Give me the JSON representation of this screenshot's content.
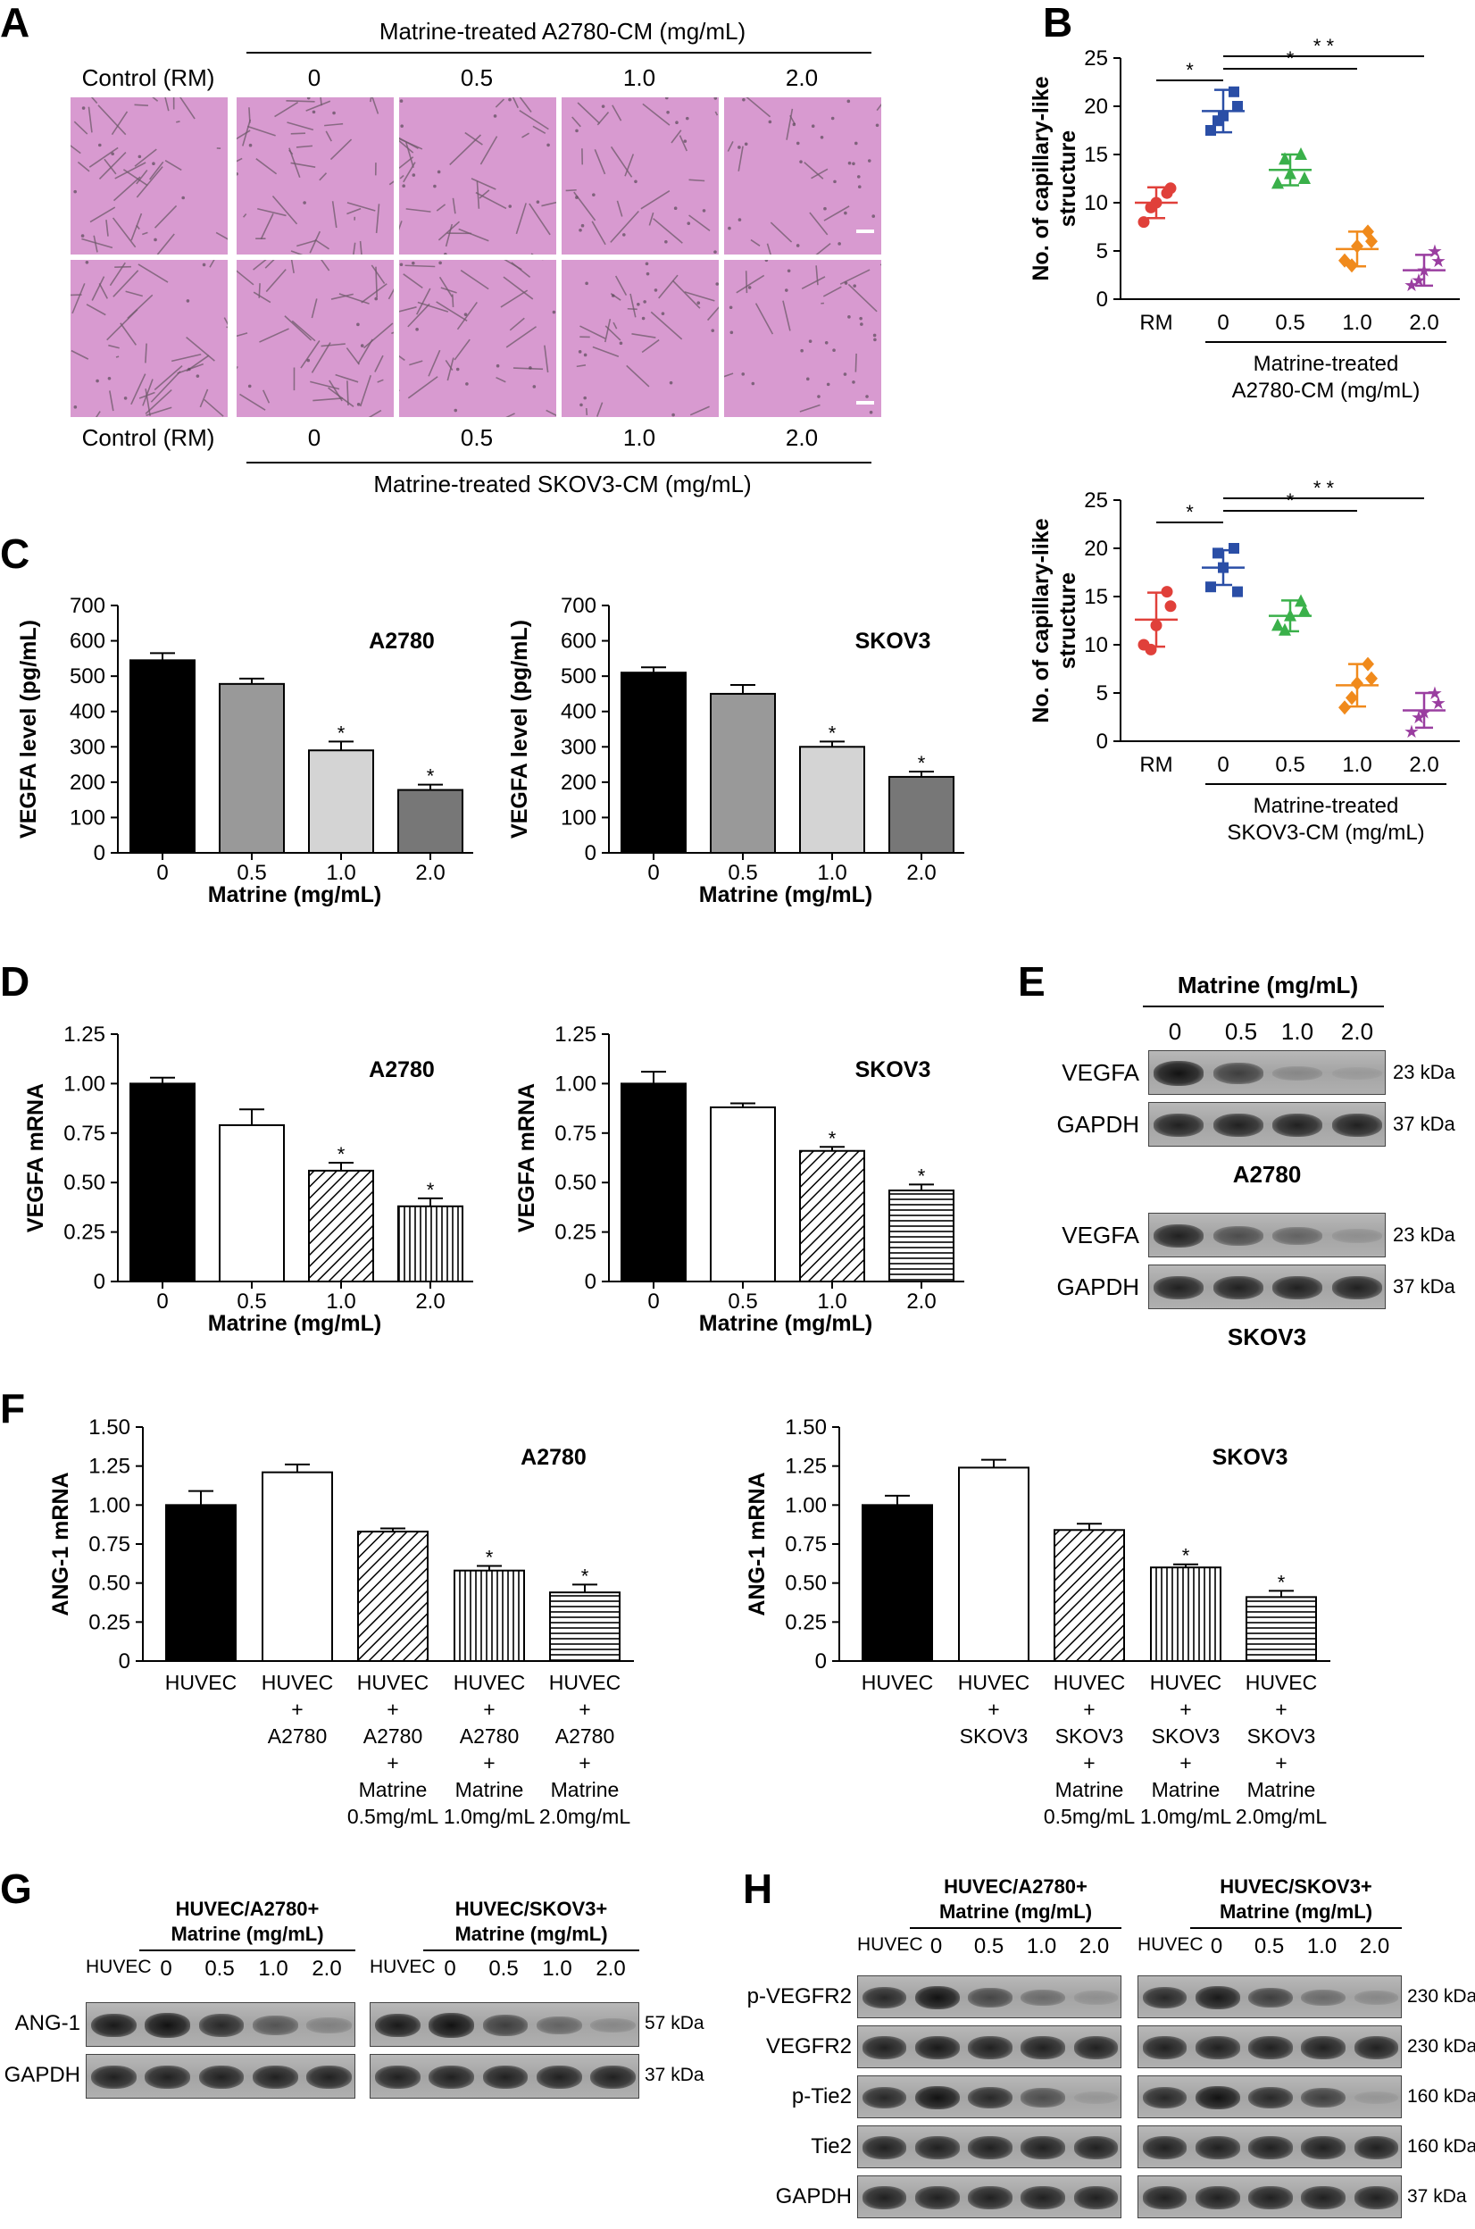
{
  "panels": {
    "A": {
      "label": "A",
      "top_title": "Matrine-treated A2780-CM (mg/mL)",
      "bottom_title": "Matrine-treated SKOV3-CM (mg/mL)",
      "columns": [
        "Control (RM)",
        "0",
        "0.5",
        "1.0",
        "2.0"
      ],
      "image_densities": [
        [
          0.9,
          1.0,
          0.8,
          0.55,
          0.35
        ],
        [
          0.9,
          1.0,
          0.8,
          0.55,
          0.35
        ]
      ]
    },
    "B": {
      "label": "B",
      "charts": [
        {
          "ylabel": "No. of capillary-like structure",
          "group_title": [
            "Matrine-treated",
            "A2780-CM (mg/mL)"
          ],
          "sig": [
            {
              "from": 0,
              "to": 1,
              "label": "*"
            },
            {
              "from": 1,
              "to": 3,
              "label": "*"
            },
            {
              "from": 1,
              "to": 4,
              "label": "* *"
            }
          ],
          "chart_data": {
            "type": "scatter",
            "categories": [
              "RM",
              "0",
              "0.5",
              "1.0",
              "2.0"
            ],
            "ylim": [
              0,
              25
            ],
            "yticks": [
              0,
              5,
              10,
              15,
              20,
              25
            ],
            "colors": [
              "#e0403a",
              "#2a4ea6",
              "#3ab04a",
              "#f08a1c",
              "#9a3ea0"
            ],
            "markers": [
              "circle",
              "square",
              "triangle",
              "diamond",
              "star"
            ],
            "means": [
              10,
              19.5,
              13.4,
              5.2,
              3.0
            ],
            "sd": [
              1.6,
              2.2,
              1.6,
              1.8,
              1.6
            ],
            "points": [
              [
                8,
                10,
                11,
                9.5,
                11.5
              ],
              [
                17.5,
                19,
                21.5,
                18.5,
                20
              ],
              [
                12,
                13,
                15,
                14.5,
                12.5
              ],
              [
                4,
                5.5,
                7,
                3.5,
                6
              ],
              [
                1.5,
                3,
                5,
                2,
                4
              ]
            ]
          }
        },
        {
          "ylabel": "No. of capillary-like structure",
          "group_title": [
            "Matrine-treated",
            "SKOV3-CM (mg/mL)"
          ],
          "sig": [
            {
              "from": 0,
              "to": 1,
              "label": "*"
            },
            {
              "from": 1,
              "to": 3,
              "label": "*"
            },
            {
              "from": 1,
              "to": 4,
              "label": "* *"
            }
          ],
          "chart_data": {
            "type": "scatter",
            "categories": [
              "RM",
              "0",
              "0.5",
              "1.0",
              "2.0"
            ],
            "ylim": [
              0,
              25
            ],
            "yticks": [
              0,
              5,
              10,
              15,
              20,
              25
            ],
            "colors": [
              "#e0403a",
              "#2a4ea6",
              "#3ab04a",
              "#f08a1c",
              "#9a3ea0"
            ],
            "markers": [
              "circle",
              "square",
              "triangle",
              "diamond",
              "star"
            ],
            "means": [
              12.6,
              18,
              13,
              5.8,
              3.2
            ],
            "sd": [
              2.8,
              1.8,
              1.6,
              2.2,
              1.8
            ],
            "points": [
              [
                10,
                12,
                15.5,
                9.5,
                14
              ],
              [
                16,
                18,
                20,
                19.5,
                15.5
              ],
              [
                12,
                13,
                14.5,
                11.5,
                13.5
              ],
              [
                3.5,
                6,
                8,
                4.5,
                6.5
              ],
              [
                1,
                3,
                5,
                2.5,
                4
              ]
            ]
          }
        }
      ]
    },
    "C": {
      "label": "C",
      "charts": [
        {
          "name": "A2780",
          "ylabel": "VEGFA level (pg/mL)",
          "xlabel": "Matrine (mg/mL)",
          "chart_data": {
            "type": "bar",
            "categories": [
              "0",
              "0.5",
              "1.0",
              "2.0"
            ],
            "values": [
              545,
              478,
              290,
              178
            ],
            "errors": [
              20,
              15,
              25,
              15
            ],
            "sig": [
              "",
              "",
              "*",
              "*"
            ],
            "fills": [
              "#000000",
              "#999999",
              "#d4d4d4",
              "#777777"
            ],
            "ylim": [
              0,
              700
            ],
            "yticks": [
              0,
              100,
              200,
              300,
              400,
              500,
              600,
              700
            ]
          }
        },
        {
          "name": "SKOV3",
          "ylabel": "VEGFA level (pg/mL)",
          "xlabel": "Matrine (mg/mL)",
          "chart_data": {
            "type": "bar",
            "categories": [
              "0",
              "0.5",
              "1.0",
              "2.0"
            ],
            "values": [
              510,
              450,
              300,
              215
            ],
            "errors": [
              15,
              25,
              15,
              15
            ],
            "sig": [
              "",
              "",
              "*",
              "*"
            ],
            "fills": [
              "#000000",
              "#999999",
              "#d4d4d4",
              "#777777"
            ],
            "ylim": [
              0,
              700
            ],
            "yticks": [
              0,
              100,
              200,
              300,
              400,
              500,
              600,
              700
            ]
          }
        }
      ]
    },
    "D": {
      "label": "D",
      "charts": [
        {
          "name": "A2780",
          "ylabel": "VEGFA mRNA",
          "xlabel": "Matrine (mg/mL)",
          "chart_data": {
            "type": "bar",
            "categories": [
              "0",
              "0.5",
              "1.0",
              "2.0"
            ],
            "values": [
              1.0,
              0.79,
              0.56,
              0.38
            ],
            "errors": [
              0.03,
              0.08,
              0.04,
              0.04
            ],
            "sig": [
              "",
              "",
              "*",
              "*"
            ],
            "patterns": [
              "solid",
              "white",
              "diag",
              "vert"
            ],
            "ylim": [
              0,
              1.25
            ],
            "yticks": [
              0,
              0.25,
              0.5,
              0.75,
              1.0,
              1.25
            ],
            "ytick_labels": [
              "0",
              "0.25",
              "0.50",
              "0.75",
              "1.00",
              "1.25"
            ]
          }
        },
        {
          "name": "SKOV3",
          "ylabel": "VEGFA mRNA",
          "xlabel": "Matrine (mg/mL)",
          "chart_data": {
            "type": "bar",
            "categories": [
              "0",
              "0.5",
              "1.0",
              "2.0"
            ],
            "values": [
              1.0,
              0.88,
              0.66,
              0.46
            ],
            "errors": [
              0.06,
              0.02,
              0.02,
              0.03
            ],
            "sig": [
              "",
              "",
              "*",
              "*"
            ],
            "patterns": [
              "solid",
              "white",
              "diag",
              "horiz"
            ],
            "ylim": [
              0,
              1.25
            ],
            "yticks": [
              0,
              0.25,
              0.5,
              0.75,
              1.0,
              1.25
            ],
            "ytick_labels": [
              "0",
              "0.25",
              "0.50",
              "0.75",
              "1.00",
              "1.25"
            ]
          }
        }
      ]
    },
    "E": {
      "label": "E",
      "header": "Matrine (mg/mL)",
      "lanes": [
        "0",
        "0.5",
        "1.0",
        "2.0"
      ],
      "blocks": [
        {
          "name": "A2780",
          "rows": [
            {
              "label": "VEGFA",
              "kda": "23 kDa",
              "intensity": [
                1.0,
                0.7,
                0.2,
                0.08
              ]
            },
            {
              "label": "GAPDH",
              "kda": "37 kDa",
              "intensity": [
                0.9,
                0.9,
                0.9,
                0.9
              ]
            }
          ]
        },
        {
          "name": "SKOV3",
          "rows": [
            {
              "label": "VEGFA",
              "kda": "23 kDa",
              "intensity": [
                0.9,
                0.6,
                0.45,
                0.15
              ]
            },
            {
              "label": "GAPDH",
              "kda": "37 kDa",
              "intensity": [
                0.9,
                0.9,
                0.9,
                0.9
              ]
            }
          ]
        }
      ]
    },
    "F": {
      "label": "F",
      "charts": [
        {
          "name": "A2780",
          "ylabel": "ANG-1 mRNA",
          "xlabels": [
            [
              "HUVEC"
            ],
            [
              "HUVEC",
              "+",
              "A2780"
            ],
            [
              "HUVEC",
              "+",
              "A2780",
              "+",
              "Matrine",
              "0.5mg/mL"
            ],
            [
              "HUVEC",
              "+",
              "A2780",
              "+",
              "Matrine",
              "1.0mg/mL"
            ],
            [
              "HUVEC",
              "+",
              "A2780",
              "+",
              "Matrine",
              "2.0mg/mL"
            ]
          ],
          "chart_data": {
            "type": "bar",
            "categories": [
              "HUVEC",
              "HUVEC + A2780",
              "HUVEC + A2780 + Matrine 0.5mg/mL",
              "HUVEC + A2780 + Matrine 1.0mg/mL",
              "HUVEC + A2780 + Matrine 2.0mg/mL"
            ],
            "values": [
              1.0,
              1.21,
              0.83,
              0.58,
              0.44
            ],
            "errors": [
              0.09,
              0.05,
              0.02,
              0.03,
              0.05
            ],
            "sig": [
              "",
              "",
              "",
              "*",
              "*"
            ],
            "patterns": [
              "solid",
              "white",
              "diag",
              "vert",
              "horiz"
            ],
            "ylim": [
              0,
              1.5
            ],
            "yticks": [
              0,
              0.25,
              0.5,
              0.75,
              1.0,
              1.25,
              1.5
            ],
            "ytick_labels": [
              "0",
              "0.25",
              "0.50",
              "0.75",
              "1.00",
              "1.25",
              "1.50"
            ]
          }
        },
        {
          "name": "SKOV3",
          "ylabel": "ANG-1 mRNA",
          "xlabels": [
            [
              "HUVEC"
            ],
            [
              "HUVEC",
              "+",
              "SKOV3"
            ],
            [
              "HUVEC",
              "+",
              "SKOV3",
              "+",
              "Matrine",
              "0.5mg/mL"
            ],
            [
              "HUVEC",
              "+",
              "SKOV3",
              "+",
              "Matrine",
              "1.0mg/mL"
            ],
            [
              "HUVEC",
              "+",
              "SKOV3",
              "+",
              "Matrine",
              "2.0mg/mL"
            ]
          ],
          "chart_data": {
            "type": "bar",
            "categories": [
              "HUVEC",
              "HUVEC + SKOV3",
              "HUVEC + SKOV3 + Matrine 0.5mg/mL",
              "HUVEC + SKOV3 + Matrine 1.0mg/mL",
              "HUVEC + SKOV3 + Matrine 2.0mg/mL"
            ],
            "values": [
              1.0,
              1.24,
              0.84,
              0.6,
              0.41
            ],
            "errors": [
              0.06,
              0.05,
              0.04,
              0.02,
              0.04
            ],
            "sig": [
              "",
              "",
              "",
              "*",
              "*"
            ],
            "patterns": [
              "solid",
              "white",
              "diag",
              "vert",
              "horiz"
            ],
            "ylim": [
              0,
              1.5
            ],
            "yticks": [
              0,
              0.25,
              0.5,
              0.75,
              1.0,
              1.25,
              1.5
            ],
            "ytick_labels": [
              "0",
              "0.25",
              "0.50",
              "0.75",
              "1.00",
              "1.25",
              "1.50"
            ]
          }
        }
      ]
    },
    "G": {
      "label": "G",
      "headers": [
        [
          "HUVEC/A2780+",
          "Matrine (mg/mL)"
        ],
        [
          "HUVEC/SKOV3+",
          "Matrine (mg/mL)"
        ]
      ],
      "lanes": [
        "HUVEC",
        "0",
        "0.5",
        "1.0",
        "2.0"
      ],
      "rows": [
        {
          "label": "ANG-1",
          "kda": "57 kDa",
          "intensity": [
            [
              0.95,
              1.0,
              0.85,
              0.55,
              0.25
            ],
            [
              0.95,
              1.0,
              0.7,
              0.45,
              0.2
            ]
          ]
        },
        {
          "label": "GAPDH",
          "kda": "37 kDa",
          "intensity": [
            [
              0.9,
              0.9,
              0.9,
              0.9,
              0.9
            ],
            [
              0.9,
              0.9,
              0.9,
              0.9,
              0.9
            ]
          ]
        }
      ]
    },
    "H": {
      "label": "H",
      "headers": [
        [
          "HUVEC/A2780+",
          "Matrine (mg/mL)"
        ],
        [
          "HUVEC/SKOV3+",
          "Matrine (mg/mL)"
        ]
      ],
      "lanes": [
        "HUVEC",
        "0",
        "0.5",
        "1.0",
        "2.0"
      ],
      "rows": [
        {
          "label": "p-VEGFR2",
          "kda": "230 kDa",
          "intensity": [
            [
              0.85,
              1.0,
              0.65,
              0.4,
              0.15
            ],
            [
              0.85,
              0.95,
              0.7,
              0.4,
              0.2
            ]
          ]
        },
        {
          "label": "VEGFR2",
          "kda": "230 kDa",
          "intensity": [
            [
              0.9,
              0.95,
              0.9,
              0.9,
              0.9
            ],
            [
              0.9,
              0.9,
              0.9,
              0.9,
              0.9
            ]
          ]
        },
        {
          "label": "p-Tie2",
          "kda": "160 kDa",
          "intensity": [
            [
              0.85,
              1.0,
              0.85,
              0.6,
              0.1
            ],
            [
              0.85,
              1.0,
              0.85,
              0.7,
              0.1
            ]
          ]
        },
        {
          "label": "Tie2",
          "kda": "160 kDa",
          "intensity": [
            [
              0.9,
              0.9,
              0.9,
              0.9,
              0.9
            ],
            [
              0.9,
              0.9,
              0.9,
              0.9,
              0.9
            ]
          ]
        },
        {
          "label": "GAPDH",
          "kda": "37 kDa",
          "intensity": [
            [
              0.9,
              0.9,
              0.9,
              0.9,
              0.9
            ],
            [
              0.9,
              0.9,
              0.9,
              0.9,
              0.9
            ]
          ]
        }
      ]
    }
  }
}
